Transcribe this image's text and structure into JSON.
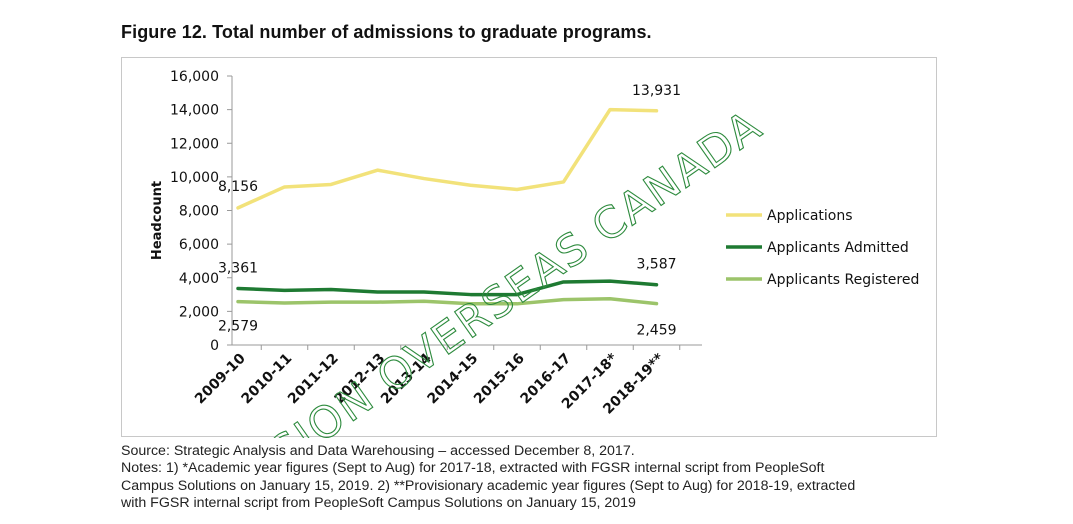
{
  "figure": {
    "title": "Figure 12. Total number of admissions to graduate programs."
  },
  "chart_data": {
    "type": "line",
    "categories": [
      "2009-10",
      "2010-11",
      "2011-12",
      "2012-13",
      "2013-14",
      "2014-15",
      "2015-16",
      "2016-17",
      "2017-18*",
      "2018-19**"
    ],
    "series": [
      {
        "name": "Applications",
        "color": "#f2e27a",
        "values": [
          8156,
          9400,
          9550,
          10400,
          9900,
          9500,
          9250,
          9700,
          14000,
          13931
        ]
      },
      {
        "name": "Applicants Admitted",
        "color": "#1e7a32",
        "values": [
          3361,
          3250,
          3300,
          3150,
          3150,
          3000,
          3000,
          3750,
          3800,
          3587
        ]
      },
      {
        "name": "Applicants Registered",
        "color": "#9cc46a",
        "values": [
          2579,
          2500,
          2550,
          2550,
          2600,
          2450,
          2450,
          2700,
          2750,
          2459
        ]
      }
    ],
    "ylabel": "Headcount",
    "xlabel": "",
    "ylim": [
      0,
      16000
    ],
    "yticks": [
      "0",
      "2,000",
      "4,000",
      "6,000",
      "8,000",
      "10,000",
      "12,000",
      "14,000",
      "16,000"
    ],
    "data_labels": [
      {
        "series": 0,
        "index": 0,
        "text": "8,156"
      },
      {
        "series": 0,
        "index": 9,
        "text": "13,931"
      },
      {
        "series": 1,
        "index": 0,
        "text": "3,361"
      },
      {
        "series": 1,
        "index": 9,
        "text": "3,587"
      },
      {
        "series": 2,
        "index": 0,
        "text": "2,579"
      },
      {
        "series": 2,
        "index": 9,
        "text": "2,459"
      }
    ],
    "legend_position": "right",
    "grid": false
  },
  "watermark": {
    "text": "VISION OVERSEAS CANADA",
    "color": "#2e8b3e"
  },
  "notes": {
    "source": "Source: Strategic Analysis and Data Warehousing – accessed December 8, 2017.",
    "line2": "Notes: 1) *Academic year figures (Sept to Aug) for 2017-18, extracted with FGSR internal script from PeopleSoft",
    "line3": "Campus Solutions on January 15, 2019. 2) **Provisionary academic year figures (Sept to Aug) for 2018-19, extracted",
    "line4": "with FGSR internal script from PeopleSoft Campus Solutions on January 15, 2019"
  }
}
